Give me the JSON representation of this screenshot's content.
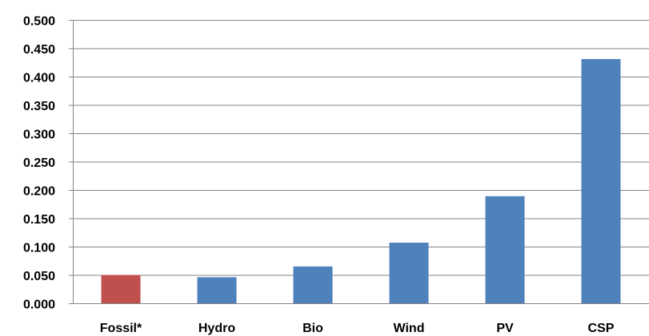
{
  "chart_data": {
    "type": "bar",
    "title": "",
    "xlabel": "",
    "ylabel": "",
    "categories": [
      "Fossil*",
      "Hydro",
      "Bio",
      "Wind",
      "PV",
      "CSP"
    ],
    "values": [
      0.05,
      0.046,
      0.065,
      0.107,
      0.189,
      0.431
    ],
    "bar_colors": [
      "#C0504D",
      "#4F81BD",
      "#4F81BD",
      "#4F81BD",
      "#4F81BD",
      "#4F81BD"
    ],
    "ylim": [
      0,
      0.5
    ],
    "yticks": [
      "0.000",
      "0.050",
      "0.100",
      "0.150",
      "0.200",
      "0.250",
      "0.300",
      "0.350",
      "0.400",
      "0.450",
      "0.500"
    ],
    "grid": true,
    "legend": "none"
  }
}
